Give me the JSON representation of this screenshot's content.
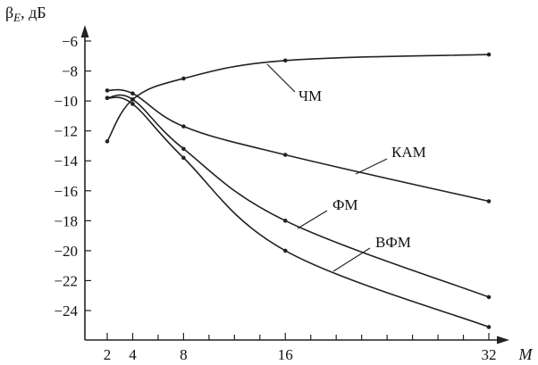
{
  "chart_data": {
    "type": "line",
    "xlabel": "M",
    "ylabel": {
      "main": "β",
      "subscript": "E",
      "unit": ", дБ"
    },
    "x_ticks_labeled": [
      2,
      4,
      8,
      16,
      32
    ],
    "x_ticks_minor": [
      6,
      10,
      12,
      14,
      18,
      20,
      22,
      24,
      26,
      28,
      30
    ],
    "y_ticks": [
      -6,
      -8,
      -10,
      -12,
      -14,
      -16,
      -18,
      -20,
      -22,
      -24
    ],
    "xlim": [
      0,
      33
    ],
    "ylim": [
      -25.5,
      -5
    ],
    "series": [
      {
        "name": "ЧМ",
        "x": [
          2,
          4,
          8,
          16,
          32
        ],
        "y": [
          -12.7,
          -9.9,
          -8.5,
          -7.3,
          -6.9
        ]
      },
      {
        "name": "КАМ",
        "x": [
          2,
          4,
          8,
          16,
          32
        ],
        "y": [
          -9.3,
          -9.5,
          -11.7,
          -13.6,
          -16.7
        ]
      },
      {
        "name": "ФМ",
        "x": [
          2,
          4,
          8,
          16,
          32
        ],
        "y": [
          -9.8,
          -9.9,
          -13.2,
          -18.0,
          -23.1
        ]
      },
      {
        "name": "ВФМ",
        "x": [
          2,
          4,
          8,
          16,
          32
        ],
        "y": [
          -9.8,
          -10.2,
          -13.8,
          -20.0,
          -25.1
        ]
      }
    ]
  }
}
